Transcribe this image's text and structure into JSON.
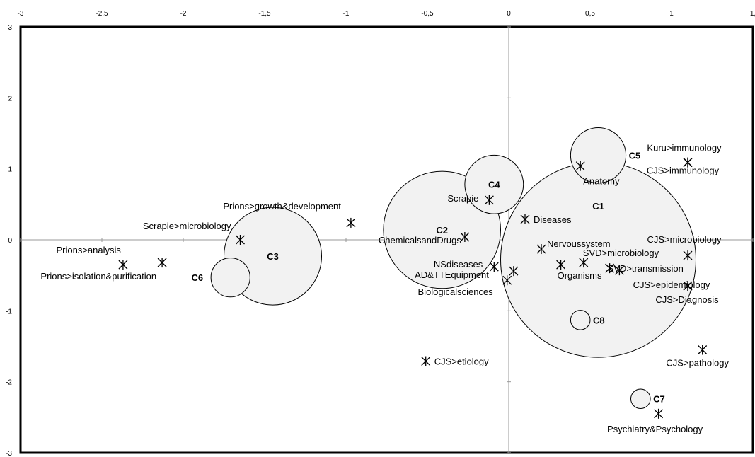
{
  "chart_data": {
    "type": "scatter",
    "title": "",
    "xlabel": "",
    "ylabel": "",
    "xlim": [
      -3,
      1.5
    ],
    "ylim": [
      -3,
      3
    ],
    "x_tick_labels": [
      "-3",
      "-2,5",
      "-2",
      "-1,5",
      "-1",
      "-0,5",
      "0",
      "0,5",
      "1",
      "1,"
    ],
    "x_tick_values": [
      -3,
      -2.5,
      -2,
      -1.5,
      -1,
      -0.5,
      0,
      0.5,
      1,
      1.5
    ],
    "y_tick_labels": [
      "3",
      "2",
      "1",
      "0",
      "-1",
      "-2",
      "-3"
    ],
    "y_tick_values": [
      3,
      2,
      1,
      0,
      -1,
      -2,
      -3
    ],
    "grid": false,
    "axes_through_origin": true,
    "series": [
      {
        "marker": "asterisk",
        "points": [
          {
            "label": "Prions>analysis",
            "x": -2.37,
            "y": -0.35
          },
          {
            "label": "Prions>isolation&purification",
            "x": -2.13,
            "y": -0.32
          },
          {
            "label": "Scrapie>microbiology",
            "x": -1.65,
            "y": 0.0
          },
          {
            "label": "Prions>growth&development",
            "x": -0.97,
            "y": 0.24
          },
          {
            "label": "ChemicalsandDrugs",
            "x": -0.27,
            "y": 0.04
          },
          {
            "label": "Scrapie",
            "x": -0.12,
            "y": 0.56
          },
          {
            "label": "NSdiseases",
            "x": -0.09,
            "y": -0.38
          },
          {
            "label": "AD&TTEquipment",
            "x": 0.03,
            "y": -0.44
          },
          {
            "label": "Biologicalsciences",
            "x": -0.01,
            "y": -0.57
          },
          {
            "label": "Diseases",
            "x": 0.1,
            "y": 0.29
          },
          {
            "label": "Nervoussystem",
            "x": 0.2,
            "y": -0.13
          },
          {
            "label": "Organisms",
            "x": 0.32,
            "y": -0.35
          },
          {
            "label": "SVD>microbiology",
            "x": 0.46,
            "y": -0.32
          },
          {
            "label": "SVD>transmission",
            "x": 0.62,
            "y": -0.4
          },
          {
            "label": "",
            "x": 0.68,
            "y": -0.43
          },
          {
            "label": "Anatomy",
            "x": 0.44,
            "y": 1.04
          },
          {
            "label": "Kuru>immunology",
            "x": 1.1,
            "y": 1.09
          },
          {
            "label": "CJS>immunology",
            "x": 1.1,
            "y": 1.09
          },
          {
            "label": "CJS>microbiology",
            "x": 1.1,
            "y": -0.22
          },
          {
            "label": "CJS>epidemiology",
            "x": 1.1,
            "y": -0.65
          },
          {
            "label": "CJS>Diagnosis",
            "x": 1.1,
            "y": -0.65
          },
          {
            "label": "CJS>etiology",
            "x": -0.51,
            "y": -1.71
          },
          {
            "label": "CJS>pathology",
            "x": 1.19,
            "y": -1.55
          },
          {
            "label": "Psychiatry&Psychology",
            "x": 0.92,
            "y": -2.45
          }
        ]
      },
      {
        "marker": "circle",
        "clusters": [
          {
            "label": "C1",
            "x": 0.55,
            "y": -0.28,
            "size": 0.6
          },
          {
            "label": "C2",
            "x": -0.41,
            "y": 0.14,
            "size": 0.36
          },
          {
            "label": "C3",
            "x": -1.45,
            "y": -0.23,
            "size": 0.3
          },
          {
            "label": "C4",
            "x": -0.09,
            "y": 0.78,
            "size": 0.18
          },
          {
            "label": "C5",
            "x": 0.55,
            "y": 1.19,
            "size": 0.17
          },
          {
            "label": "C6",
            "x": -1.71,
            "y": -0.53,
            "size": 0.12
          },
          {
            "label": "C7",
            "x": 0.81,
            "y": -2.24,
            "size": 0.06
          },
          {
            "label": "C8",
            "x": 0.44,
            "y": -1.13,
            "size": 0.06
          }
        ]
      }
    ]
  }
}
